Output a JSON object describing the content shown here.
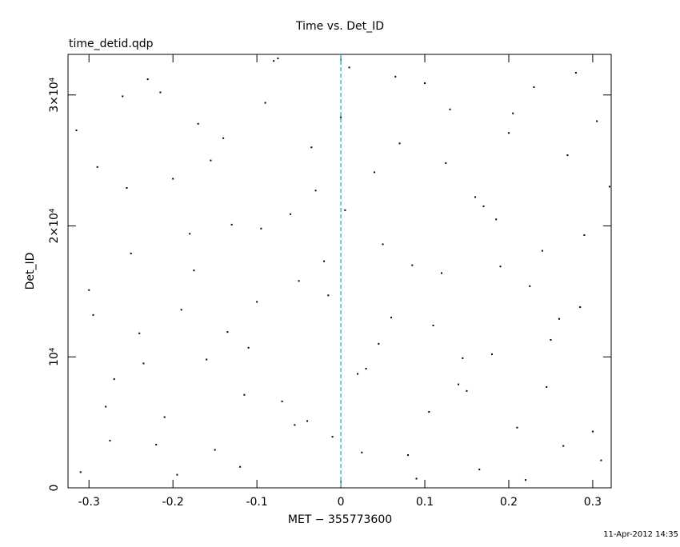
{
  "chart_data": {
    "type": "scatter",
    "title": "Time vs. Det_ID",
    "subtitle": "time_detid.qdp",
    "x_label": "MET − 355773600",
    "y_label": "Det_ID",
    "footer": "11-Apr-2012 14:35",
    "xlim": [
      -0.325,
      0.322
    ],
    "ylim": [
      0,
      33100
    ],
    "xticks": [
      -0.3,
      -0.2,
      -0.1,
      0,
      0.1,
      0.2,
      0.3
    ],
    "yticks": [
      0,
      {
        "value": 10000,
        "label": "10⁴"
      },
      {
        "value": 20000,
        "label": "2×10⁴"
      },
      {
        "value": 30000,
        "label": "3×10⁴"
      }
    ],
    "reference_line": {
      "x": 0,
      "color": "#2a9fb5"
    },
    "color": "#000000",
    "x": [
      -0.31,
      -0.29,
      -0.27,
      -0.25,
      -0.23,
      -0.21,
      -0.19,
      -0.17,
      -0.15,
      -0.13,
      -0.11,
      -0.09,
      -0.07,
      -0.05,
      -0.03,
      -0.01,
      0.01,
      0.03,
      0.05,
      0.07,
      0.09,
      0.11,
      0.13,
      0.15,
      0.17,
      0.19,
      0.21,
      0.23,
      0.25,
      0.27,
      0.29,
      0.31,
      -0.3,
      -0.28,
      -0.26,
      -0.24,
      -0.22,
      -0.2,
      -0.18,
      -0.16,
      -0.14,
      -0.12,
      -0.1,
      -0.08,
      -0.06,
      -0.04,
      -0.02,
      0.0,
      0.02,
      0.04,
      0.06,
      0.08,
      0.1,
      0.12,
      0.14,
      0.16,
      0.18,
      0.2,
      0.22,
      0.24,
      0.26,
      0.28,
      0.3,
      0.32,
      -0.315,
      -0.295,
      -0.275,
      -0.255,
      -0.235,
      -0.215,
      -0.195,
      -0.175,
      -0.155,
      -0.135,
      -0.115,
      -0.095,
      -0.075,
      -0.055,
      -0.035,
      -0.015,
      0.005,
      0.025,
      0.045,
      0.065,
      0.085,
      0.105,
      0.125,
      0.145,
      0.165,
      0.185,
      0.205,
      0.225,
      0.245,
      0.265,
      0.285,
      0.305
    ],
    "y": [
      1200,
      24500,
      8300,
      17900,
      31200,
      5400,
      13600,
      27800,
      2900,
      20100,
      10700,
      29400,
      6600,
      15800,
      22700,
      3900,
      32100,
      9100,
      18600,
      26300,
      700,
      12400,
      28900,
      7400,
      21500,
      16900,
      4600,
      30600,
      11300,
      25400,
      19300,
      2100,
      15100,
      6200,
      29900,
      11800,
      3300,
      23600,
      19400,
      9800,
      26700,
      1600,
      14200,
      32600,
      20900,
      5100,
      17300,
      28300,
      8700,
      24100,
      13000,
      2500,
      30900,
      16400,
      7900,
      22200,
      10200,
      27100,
      600,
      18100,
      12900,
      31700,
      4300,
      23000,
      27300,
      13200,
      3600,
      22900,
      9500,
      30200,
      1000,
      16600,
      25000,
      11900,
      7100,
      19800,
      32800,
      4800,
      26000,
      14700,
      21200,
      2700,
      11000,
      31400,
      17000,
      5800,
      24800,
      9900,
      1400,
      20500,
      28600,
      15400,
      7700,
      3200,
      13800,
      28000
    ]
  }
}
